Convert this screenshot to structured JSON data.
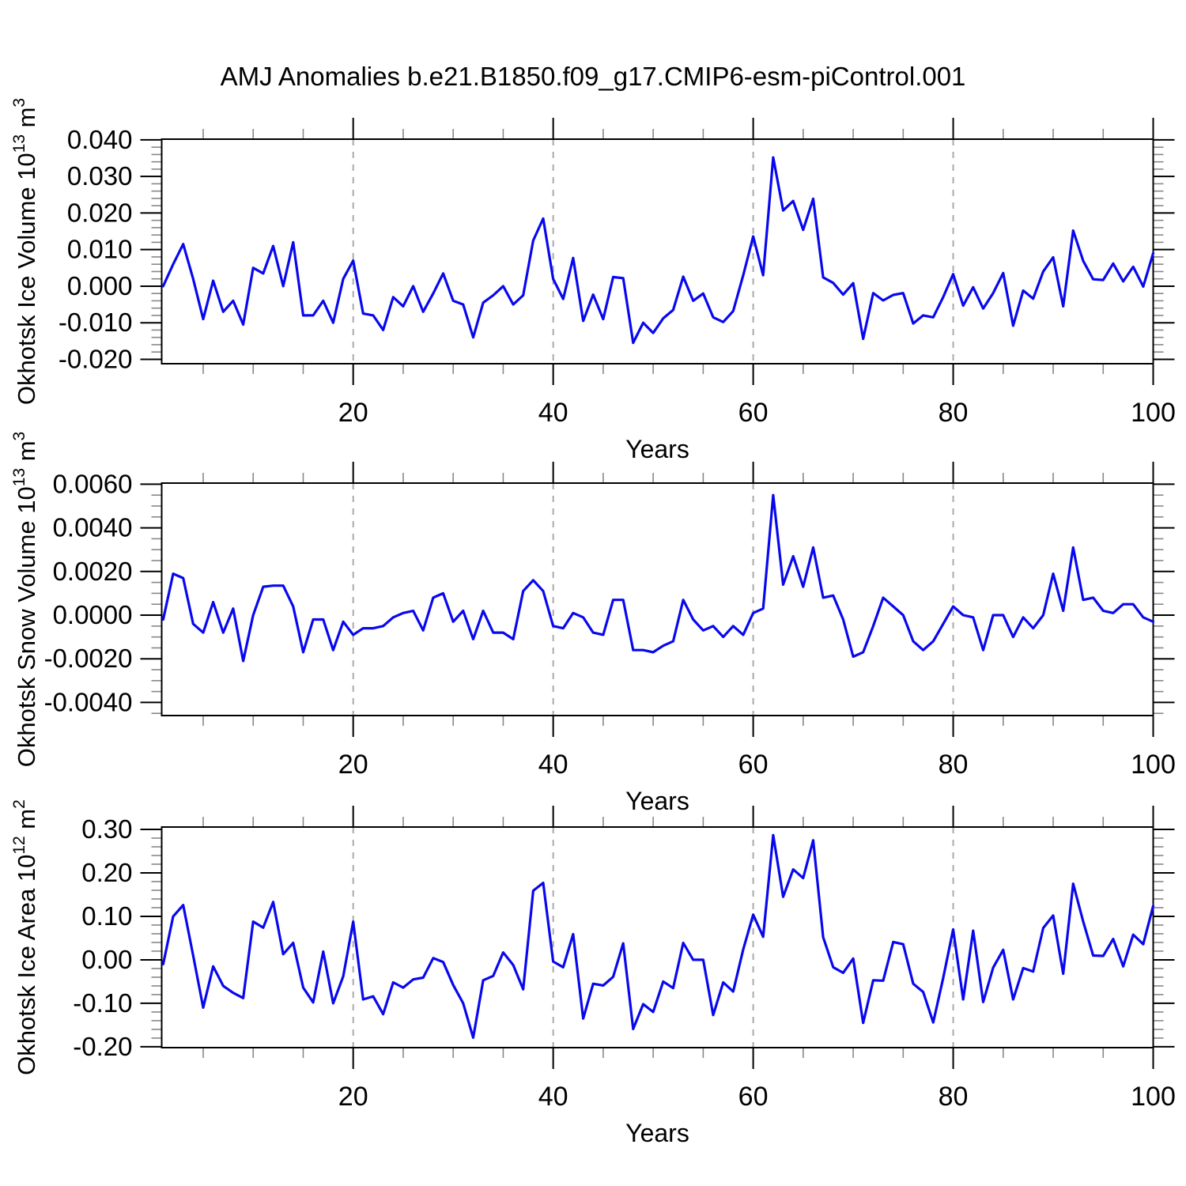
{
  "title": "AMJ Anomalies b.e21.B1850.f09_g17.CMIP6-esm-piControl.001",
  "colors": {
    "line": "#0808EE",
    "axis": "#000000",
    "minor_tick": "#888888",
    "grid": "#AAAAAA",
    "text": "#000000"
  },
  "chart_data": [
    {
      "type": "line",
      "title": "",
      "xlabel": "Years",
      "ylabel_segments": [
        {
          "t": "Okhotsk Ice Volume 10",
          "sup": false
        },
        {
          "t": "13",
          "sup": true
        },
        {
          "t": " m",
          "sup": false
        },
        {
          "t": "3",
          "sup": true
        }
      ],
      "x_range": [
        1,
        100
      ],
      "values": [
        0.0,
        0.006,
        0.0115,
        0.002,
        -0.009,
        0.0015,
        -0.007,
        -0.004,
        -0.0105,
        0.005,
        0.0035,
        0.011,
        0.0,
        0.012,
        -0.008,
        -0.008,
        -0.004,
        -0.01,
        0.002,
        0.007,
        -0.0075,
        -0.008,
        -0.012,
        -0.003,
        -0.0055,
        0.0,
        -0.007,
        -0.002,
        0.0035,
        -0.004,
        -0.005,
        -0.014,
        -0.0045,
        -0.0025,
        0.0,
        -0.005,
        -0.0025,
        0.0125,
        0.0185,
        0.002,
        -0.0035,
        0.0077,
        -0.0095,
        -0.0023,
        -0.009,
        0.0025,
        0.0022,
        -0.0155,
        -0.01,
        -0.0128,
        -0.0088,
        -0.0065,
        0.0026,
        -0.004,
        -0.002,
        -0.0085,
        -0.0098,
        -0.0068,
        0.003,
        0.0136,
        0.003,
        0.0352,
        0.0207,
        0.0233,
        0.0154,
        0.0239,
        0.0024,
        0.0009,
        -0.0023,
        0.0008,
        -0.0144,
        -0.0019,
        -0.0039,
        -0.0024,
        -0.0019,
        -0.0102,
        -0.008,
        -0.0085,
        -0.003,
        0.0033,
        -0.0053,
        -0.0003,
        -0.0061,
        -0.0019,
        0.0036,
        -0.0108,
        -0.0012,
        -0.0034,
        0.004,
        0.0079,
        -0.0055,
        0.0152,
        0.0069,
        0.0019,
        0.0017,
        0.0062,
        0.0013,
        0.0053,
        -0.0001,
        0.009
      ],
      "ylim": [
        -0.0212,
        0.0402
      ],
      "yticks": [
        0.04,
        0.03,
        0.02,
        0.01,
        0.0,
        -0.01,
        -0.02
      ],
      "ytick_labels": [
        "0.040",
        "0.030",
        "0.020",
        "0.010",
        "0.000",
        "-0.010",
        "-0.020"
      ],
      "y_minor_step": 0.002,
      "xticks": [
        20,
        40,
        60,
        80,
        100
      ],
      "xtick_labels": [
        "20",
        "40",
        "60",
        "80",
        "100"
      ],
      "x_minor_step": 5,
      "grid_x": [
        20,
        40,
        60,
        80
      ],
      "grid_on": "dashed-vertical",
      "legend": "none"
    },
    {
      "type": "line",
      "title": "",
      "xlabel": "Years",
      "ylabel_segments": [
        {
          "t": "Okhotsk Snow Volume 10",
          "sup": false
        },
        {
          "t": "13",
          "sup": true
        },
        {
          "t": " m",
          "sup": false
        },
        {
          "t": "3",
          "sup": true
        }
      ],
      "x_range": [
        1,
        100
      ],
      "values": [
        -0.0002,
        0.0019,
        0.0017,
        -0.0004,
        -0.0008,
        0.0006,
        -0.0008,
        0.0003,
        -0.0021,
        0.0,
        0.0013,
        0.00135,
        0.00135,
        0.0004,
        -0.0017,
        -0.0002,
        -0.0002,
        -0.0016,
        -0.0003,
        -0.0009,
        -0.0006,
        -0.0006,
        -0.0005,
        -0.0001,
        0.0001,
        0.0002,
        -0.0007,
        0.0008,
        0.001,
        -0.0003,
        0.0002,
        -0.0011,
        0.0002,
        -0.0008,
        -0.0008,
        -0.0011,
        0.0011,
        0.0016,
        0.0011,
        -0.0005,
        -0.0006,
        0.0001,
        -0.0001,
        -0.0008,
        -0.0009,
        0.0007,
        0.0007,
        -0.0016,
        -0.0016,
        -0.0017,
        -0.0014,
        -0.0012,
        0.0007,
        -0.0002,
        -0.0007,
        -0.0005,
        -0.001,
        -0.0005,
        -0.0009,
        0.0001,
        0.0003,
        0.0055,
        0.0014,
        0.0027,
        0.0013,
        0.0031,
        0.0008,
        0.0009,
        -0.0002,
        -0.0019,
        -0.0017,
        -0.0005,
        0.0008,
        0.0004,
        0.0,
        -0.0012,
        -0.0016,
        -0.0012,
        -0.0004,
        0.0004,
        0.0,
        -0.0001,
        -0.0016,
        0.0,
        0.0,
        -0.001,
        -0.0001,
        -0.0006,
        0.0,
        0.0019,
        0.0002,
        0.0031,
        0.0007,
        0.0008,
        0.0002,
        0.0001,
        0.0005,
        0.0005,
        -0.0001,
        -0.0003
      ],
      "ylim": [
        -0.0046,
        0.00605
      ],
      "yticks": [
        0.006,
        0.004,
        0.002,
        0.0,
        -0.002,
        -0.004
      ],
      "ytick_labels": [
        "0.0060",
        "0.0040",
        "0.0020",
        "0.0000",
        "-0.0020",
        "-0.0040"
      ],
      "y_minor_step": 0.0005,
      "xticks": [
        20,
        40,
        60,
        80,
        100
      ],
      "xtick_labels": [
        "20",
        "40",
        "60",
        "80",
        "100"
      ],
      "x_minor_step": 5,
      "grid_x": [
        20,
        40,
        60,
        80
      ],
      "grid_on": "dashed-vertical",
      "legend": "none"
    },
    {
      "type": "line",
      "title": "",
      "xlabel": "Years",
      "ylabel_segments": [
        {
          "t": "Okhotsk Ice Area 10",
          "sup": false
        },
        {
          "t": "12",
          "sup": true
        },
        {
          "t": " m",
          "sup": false
        },
        {
          "t": "2",
          "sup": true
        }
      ],
      "x_range": [
        1,
        100
      ],
      "values": [
        -0.01,
        0.1,
        0.126,
        0.01,
        -0.11,
        -0.015,
        -0.06,
        -0.076,
        -0.088,
        0.088,
        0.074,
        0.133,
        0.013,
        0.039,
        -0.064,
        -0.098,
        0.019,
        -0.1,
        -0.038,
        0.088,
        -0.091,
        -0.084,
        -0.125,
        -0.052,
        -0.064,
        -0.045,
        -0.041,
        0.004,
        -0.005,
        -0.058,
        -0.1,
        -0.179,
        -0.047,
        -0.037,
        0.017,
        -0.012,
        -0.068,
        0.159,
        0.177,
        -0.004,
        -0.017,
        0.059,
        -0.135,
        -0.055,
        -0.059,
        -0.039,
        0.038,
        -0.159,
        -0.102,
        -0.12,
        -0.05,
        -0.065,
        0.039,
        0.0,
        0.0,
        -0.127,
        -0.052,
        -0.073,
        0.024,
        0.104,
        0.053,
        0.287,
        0.145,
        0.208,
        0.188,
        0.275,
        0.052,
        -0.017,
        -0.03,
        0.003,
        -0.145,
        -0.047,
        -0.048,
        0.041,
        0.036,
        -0.055,
        -0.074,
        -0.144,
        -0.042,
        0.07,
        -0.091,
        0.067,
        -0.097,
        -0.018,
        0.023,
        -0.091,
        -0.019,
        -0.027,
        0.073,
        0.102,
        -0.032,
        0.175,
        0.088,
        0.01,
        0.009,
        0.048,
        -0.015,
        0.058,
        0.036,
        0.124
      ],
      "ylim": [
        -0.202,
        0.3055
      ],
      "yticks": [
        0.3,
        0.2,
        0.1,
        0.0,
        -0.1,
        -0.2
      ],
      "ytick_labels": [
        "0.30",
        "0.20",
        "0.10",
        "0.00",
        "-0.10",
        "-0.20"
      ],
      "y_minor_step": 0.02,
      "xticks": [
        20,
        40,
        60,
        80,
        100
      ],
      "xtick_labels": [
        "20",
        "40",
        "60",
        "80",
        "100"
      ],
      "x_minor_step": 5,
      "grid_x": [
        20,
        40,
        60,
        80
      ],
      "grid_on": "dashed-vertical",
      "legend": "none"
    }
  ]
}
